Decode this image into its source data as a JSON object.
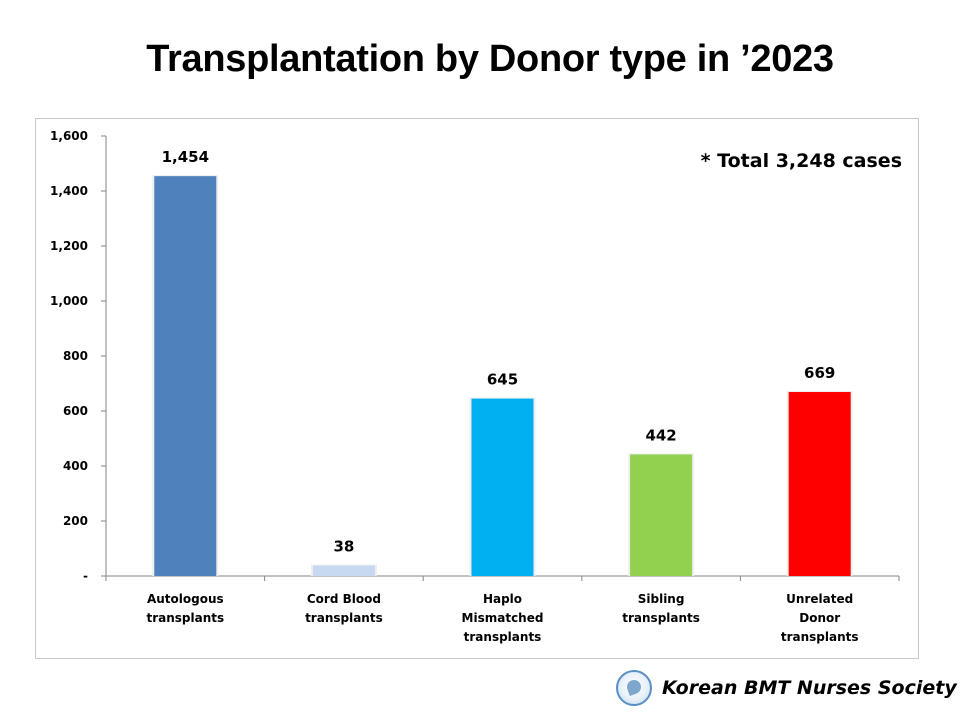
{
  "chart_data": {
    "type": "bar",
    "title": "Transplantation by Donor type in ’2023",
    "categories": [
      "Autologous transplants",
      "Cord Blood transplants",
      "Haplo Mismatched transplants",
      "Sibling transplants",
      "Unrelated Donor transplants"
    ],
    "category_lines": [
      [
        "Autologous",
        "transplants"
      ],
      [
        "Cord Blood",
        "transplants"
      ],
      [
        "Haplo",
        "Mismatched",
        "transplants"
      ],
      [
        "Sibling",
        "transplants"
      ],
      [
        "Unrelated",
        "Donor",
        "transplants"
      ]
    ],
    "values": [
      1454,
      38,
      645,
      442,
      669
    ],
    "data_labels": [
      "1,454",
      "38",
      "645",
      "442",
      "669"
    ],
    "colors": [
      "#4f81bd",
      "#c6d9f1",
      "#00b0f0",
      "#92d050",
      "#ff0000"
    ],
    "ylim": [
      0,
      1600
    ],
    "yticks": [
      0,
      200,
      400,
      600,
      800,
      1000,
      1200,
      1400,
      1600
    ],
    "ytick_labels": [
      "-",
      "200",
      "400",
      "600",
      "800",
      "1,000",
      "1,200",
      "1,400",
      "1,600"
    ],
    "xlabel": "",
    "ylabel": "",
    "grid": false,
    "legend": "none",
    "annotation": "* Total 3,248 cases"
  },
  "footer": {
    "society": "Korean BMT Nurses Society",
    "logo_icon": "society-logo-icon"
  }
}
